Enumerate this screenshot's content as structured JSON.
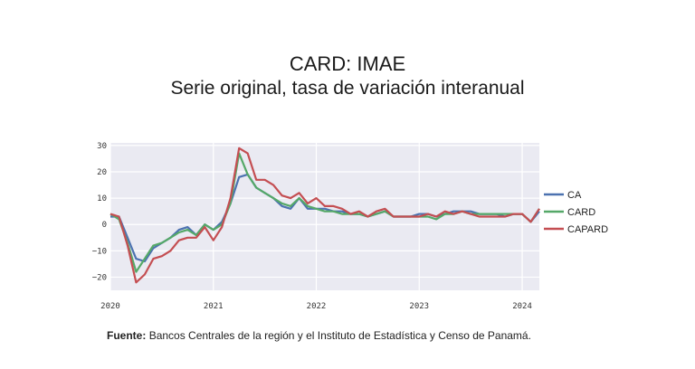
{
  "header": {
    "title": "CARD: IMAE",
    "subtitle": "Serie original, tasa de variación interanual"
  },
  "source": {
    "label": "Fuente:",
    "text": "Bancos Centrales de la región y el Instituto de Estadística y Censo de Panamá."
  },
  "colors": {
    "CA": "#4c72b0",
    "CARD": "#55a868",
    "CAPARD": "#c44e52",
    "plot_bg": "#eaeaf2",
    "grid": "#ffffff"
  },
  "chart_data": {
    "type": "line",
    "title": "",
    "xlabel": "",
    "ylabel": "",
    "xlim": [
      "2020-01",
      "2024-03"
    ],
    "ylim": [
      -25,
      31
    ],
    "x_ticks": [
      "2020",
      "2021",
      "2022",
      "2023",
      "2024"
    ],
    "y_ticks": [
      30,
      20,
      10,
      0,
      -10,
      -20
    ],
    "grid": true,
    "legend": "right",
    "x": [
      "2020-01",
      "2020-02",
      "2020-03",
      "2020-04",
      "2020-05",
      "2020-06",
      "2020-07",
      "2020-08",
      "2020-09",
      "2020-10",
      "2020-11",
      "2020-12",
      "2021-01",
      "2021-02",
      "2021-03",
      "2021-04",
      "2021-05",
      "2021-06",
      "2021-07",
      "2021-08",
      "2021-09",
      "2021-10",
      "2021-11",
      "2021-12",
      "2022-01",
      "2022-02",
      "2022-03",
      "2022-04",
      "2022-05",
      "2022-06",
      "2022-07",
      "2022-08",
      "2022-09",
      "2022-10",
      "2022-11",
      "2022-12",
      "2023-01",
      "2023-02",
      "2023-03",
      "2023-04",
      "2023-05",
      "2023-06",
      "2023-07",
      "2023-08",
      "2023-09",
      "2023-10",
      "2023-11",
      "2023-12",
      "2024-01",
      "2024-02",
      "2024-03"
    ],
    "series": [
      {
        "name": "CA",
        "values": [
          3,
          3,
          -5,
          -13,
          -14,
          -9,
          -7,
          -5,
          -2,
          -1,
          -4,
          0,
          -2,
          1,
          8,
          18,
          19,
          14,
          12,
          10,
          7,
          6,
          10,
          6,
          6,
          6,
          5,
          5,
          4,
          4,
          3,
          4,
          5,
          3,
          3,
          3,
          4,
          4,
          3,
          4,
          5,
          5,
          5,
          4,
          4,
          4,
          3,
          4,
          4,
          1,
          5
        ]
      },
      {
        "name": "CARD",
        "values": [
          4,
          2,
          -7,
          -18,
          -13,
          -8,
          -7,
          -5,
          -3,
          -2,
          -4,
          0,
          -2,
          0,
          8,
          27,
          19,
          14,
          12,
          10,
          8,
          7,
          10,
          7,
          6,
          5,
          5,
          4,
          4,
          4,
          3,
          4,
          5,
          3,
          3,
          3,
          3,
          3,
          2,
          4,
          4,
          5,
          4,
          4,
          4,
          4,
          4,
          4,
          4,
          1,
          6
        ]
      },
      {
        "name": "CAPARD",
        "values": [
          4,
          3,
          -8,
          -22,
          -19,
          -13,
          -12,
          -10,
          -6,
          -5,
          -5,
          -1,
          -6,
          -1,
          10,
          29,
          27,
          17,
          17,
          15,
          11,
          10,
          12,
          8,
          10,
          7,
          7,
          6,
          4,
          5,
          3,
          5,
          6,
          3,
          3,
          3,
          3,
          4,
          3,
          5,
          4,
          5,
          4,
          3,
          3,
          3,
          3,
          4,
          4,
          1,
          6
        ]
      }
    ]
  }
}
